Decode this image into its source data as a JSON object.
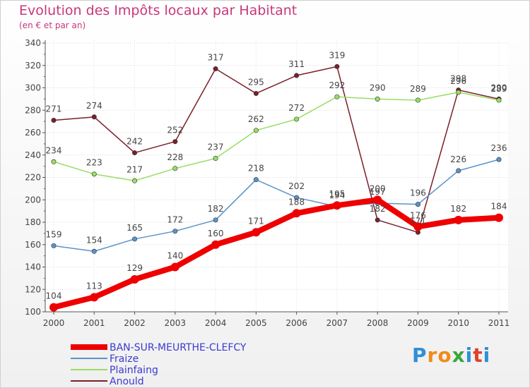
{
  "chart_data": {
    "type": "line",
    "title": "Evolution des Impôts locaux par Habitant",
    "subtitle": "(en € et par an)",
    "x": [
      "2000",
      "2001",
      "2002",
      "2003",
      "2004",
      "2005",
      "2006",
      "2007",
      "2008",
      "2009",
      "2010",
      "2011"
    ],
    "ylim": [
      100,
      340
    ],
    "yticks": [
      100,
      120,
      140,
      160,
      180,
      200,
      220,
      240,
      260,
      280,
      300,
      320,
      340
    ],
    "xlabel": "",
    "ylabel": "",
    "grid": true,
    "legend_position": "bottom-left",
    "series": [
      {
        "name": "Anould",
        "color": "#7a1f2a",
        "values": [
          271,
          274,
          242,
          252,
          317,
          295,
          311,
          319,
          182,
          171,
          298,
          290
        ]
      },
      {
        "name": "Plainfaing",
        "color": "#99dd66",
        "values": [
          234,
          223,
          217,
          228,
          237,
          262,
          272,
          292,
          290,
          289,
          296,
          289
        ]
      },
      {
        "name": "Fraize",
        "color": "#5b93c9",
        "values": [
          159,
          154,
          165,
          172,
          182,
          218,
          202,
          194,
          197,
          196,
          226,
          236
        ]
      },
      {
        "name": "BAN-SUR-MEURTHE-CLEFCY",
        "color": "#ee0000",
        "values": [
          104,
          113,
          129,
          140,
          160,
          171,
          188,
          195,
          200,
          176,
          182,
          184
        ]
      }
    ],
    "data_labels": [
      [
        "271",
        "274",
        "242",
        "252",
        "317",
        "295",
        "311",
        "319",
        "182",
        "171",
        "298",
        "290"
      ],
      [
        "234",
        "223",
        "217",
        "228",
        "237",
        "262",
        "272",
        "292",
        "290",
        "289",
        "296",
        "289"
      ],
      [
        "159",
        "154",
        "165",
        "172",
        "182",
        "218",
        "202",
        "194",
        "197",
        "196",
        "226",
        "236"
      ],
      [
        "104",
        "113",
        "129",
        "140",
        "160",
        "171",
        "188",
        "195",
        "200",
        "176",
        "182",
        "184"
      ]
    ]
  },
  "legend": [
    {
      "label": "BAN-SUR-MEURTHE-CLEFCY",
      "color": "#ee0000"
    },
    {
      "label": "Fraize",
      "color": "#5b93c9"
    },
    {
      "label": "Plainfaing",
      "color": "#99dd66"
    },
    {
      "label": "Anould",
      "color": "#7a1f2a"
    }
  ],
  "logo": {
    "letters": [
      "P",
      "r",
      "o",
      "x",
      "i",
      "t",
      "i"
    ],
    "colors": [
      "#2f8fd8",
      "#f08c1a",
      "#f08c1a",
      "#3aa63a",
      "#2f8fd8",
      "#e0412a",
      "#2f8fd8"
    ]
  }
}
